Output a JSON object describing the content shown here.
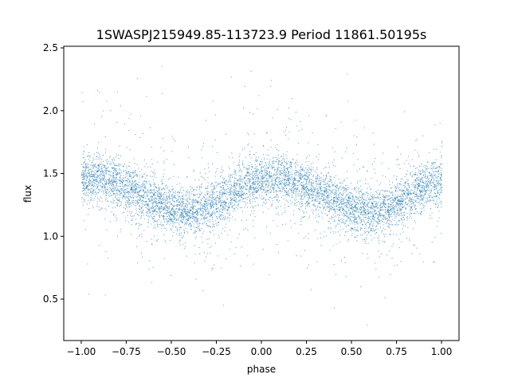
{
  "chart_data": {
    "type": "scatter",
    "title": "1SWASPJ215949.85-113723.9 Period 11861.50195s",
    "xlabel": "phase",
    "ylabel": "flux",
    "xlim": [
      -1.097,
      1.097
    ],
    "ylim": [
      0.17,
      2.513
    ],
    "xticks": [
      -1.0,
      -0.75,
      -0.5,
      -0.25,
      0.0,
      0.25,
      0.5,
      0.75,
      1.0
    ],
    "xtick_labels": [
      "−1.00",
      "−0.75",
      "−0.50",
      "−0.25",
      "0.00",
      "0.25",
      "0.50",
      "0.75",
      "1.00"
    ],
    "yticks": [
      0.5,
      1.0,
      1.5,
      2.0,
      2.5
    ],
    "ytick_labels": [
      "0.5",
      "1.0",
      "1.5",
      "2.0",
      "2.5"
    ],
    "grid": false,
    "color": "#1f77b4",
    "series": [
      {
        "x": [
          -1.0,
          -0.9,
          -0.8,
          -0.7,
          -0.6,
          -0.5,
          -0.4,
          -0.3,
          -0.2,
          -0.1,
          0.0,
          0.1,
          0.2,
          0.3,
          0.4,
          0.5,
          0.6,
          0.7,
          0.8,
          0.9,
          1.0
        ],
        "y": [
          1.45,
          1.47,
          1.43,
          1.36,
          1.29,
          1.22,
          1.19,
          1.23,
          1.31,
          1.4,
          1.45,
          1.47,
          1.43,
          1.36,
          1.29,
          1.22,
          1.19,
          1.23,
          1.31,
          1.4,
          1.43
        ]
      }
    ]
  }
}
